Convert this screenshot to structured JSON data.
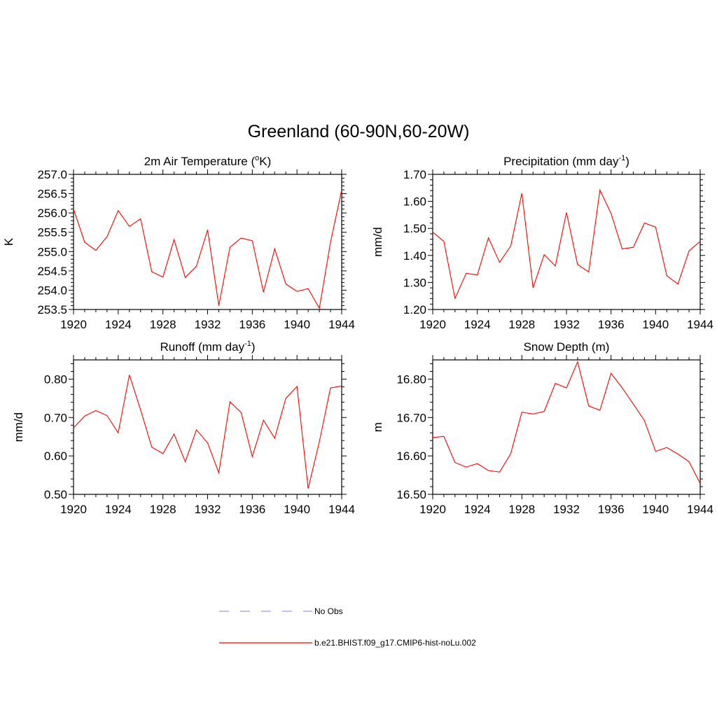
{
  "title": "Greenland (60-90N,60-20W)",
  "line_color": "#ff0000",
  "obs_color": "#9999ee",
  "legend": [
    {
      "label": "No Obs",
      "style": "dashed",
      "color": "#9999ee"
    },
    {
      "label": "b.e21.BHIST.f09_g17.CMIP6-hist-noLu.002",
      "style": "solid",
      "color": "#ff0000"
    }
  ],
  "chart_data": [
    {
      "type": "line",
      "title": "2m Air Temperature (",
      "title_sup_pre": "o",
      "title_post": "K)",
      "ylabel": "K",
      "xlim": [
        1920,
        1944
      ],
      "ylim": [
        253.5,
        257.0
      ],
      "xticks": [
        "1920",
        "1924",
        "1928",
        "1932",
        "1936",
        "1940",
        "1944"
      ],
      "yticks": [
        "253.5",
        "254.0",
        "254.5",
        "255.0",
        "255.5",
        "256.0",
        "256.5",
        "257.0"
      ],
      "series": [
        {
          "x": [
            1920,
            1921,
            1922,
            1923,
            1924,
            1925,
            1926,
            1927,
            1928,
            1929,
            1930,
            1931,
            1932,
            1933,
            1934,
            1935,
            1936,
            1937,
            1938,
            1939,
            1940,
            1941,
            1942,
            1943,
            1944
          ],
          "values": [
            256.1,
            255.24,
            255.03,
            255.39,
            256.06,
            255.65,
            255.85,
            254.48,
            254.34,
            255.31,
            254.33,
            254.62,
            255.56,
            253.6,
            255.11,
            255.35,
            255.28,
            253.95,
            255.07,
            254.16,
            253.97,
            254.04,
            253.53,
            255.24,
            256.6
          ]
        }
      ]
    },
    {
      "type": "line",
      "title": "Precipitation (mm day",
      "title_sup": "-1",
      "title_post": ")",
      "ylabel": "mm/d",
      "xlim": [
        1920,
        1944
      ],
      "ylim": [
        1.2,
        1.7
      ],
      "xticks": [
        "1920",
        "1924",
        "1928",
        "1932",
        "1936",
        "1940",
        "1944"
      ],
      "yticks": [
        "1.20",
        "1.30",
        "1.40",
        "1.50",
        "1.60",
        "1.70"
      ],
      "series": [
        {
          "x": [
            1920,
            1921,
            1922,
            1923,
            1924,
            1925,
            1926,
            1927,
            1928,
            1929,
            1930,
            1931,
            1932,
            1933,
            1934,
            1935,
            1936,
            1937,
            1938,
            1939,
            1940,
            1941,
            1942,
            1943,
            1944
          ],
          "values": [
            1.486,
            1.452,
            1.241,
            1.334,
            1.328,
            1.465,
            1.374,
            1.435,
            1.63,
            1.28,
            1.403,
            1.361,
            1.559,
            1.366,
            1.339,
            1.642,
            1.555,
            1.424,
            1.43,
            1.52,
            1.505,
            1.325,
            1.294,
            1.417,
            1.452
          ]
        }
      ]
    },
    {
      "type": "line",
      "title": "Runoff (mm day",
      "title_sup": "-1",
      "title_post": ")",
      "ylabel": "mm/d",
      "xlim": [
        1920,
        1944
      ],
      "ylim": [
        0.5,
        0.85
      ],
      "xticks": [
        "1920",
        "1924",
        "1928",
        "1932",
        "1936",
        "1940",
        "1944"
      ],
      "yticks": [
        "0.50",
        "0.60",
        "0.70",
        "0.80"
      ],
      "series": [
        {
          "x": [
            1920,
            1921,
            1922,
            1923,
            1924,
            1925,
            1926,
            1927,
            1928,
            1929,
            1930,
            1931,
            1932,
            1933,
            1934,
            1935,
            1936,
            1937,
            1938,
            1939,
            1940,
            1941,
            1942,
            1943,
            1944
          ],
          "values": [
            0.673,
            0.704,
            0.718,
            0.705,
            0.66,
            0.811,
            0.72,
            0.623,
            0.606,
            0.657,
            0.585,
            0.668,
            0.634,
            0.556,
            0.741,
            0.713,
            0.598,
            0.693,
            0.646,
            0.75,
            0.781,
            0.515,
            0.637,
            0.777,
            0.782
          ]
        }
      ]
    },
    {
      "type": "line",
      "title": "Snow Depth (m)",
      "ylabel": "m",
      "xlim": [
        1920,
        1944
      ],
      "ylim": [
        16.5,
        16.85
      ],
      "xticks": [
        "1920",
        "1924",
        "1928",
        "1932",
        "1936",
        "1940",
        "1944"
      ],
      "yticks": [
        "16.50",
        "16.60",
        "16.70",
        "16.80"
      ],
      "series": [
        {
          "x": [
            1920,
            1921,
            1922,
            1923,
            1924,
            1925,
            1926,
            1927,
            1928,
            1929,
            1930,
            1931,
            1932,
            1933,
            1934,
            1935,
            1936,
            1937,
            1938,
            1939,
            1940,
            1941,
            1942,
            1943,
            1944
          ],
          "values": [
            16.648,
            16.651,
            16.583,
            16.571,
            16.58,
            16.562,
            16.558,
            16.606,
            16.714,
            16.709,
            16.716,
            16.789,
            16.777,
            16.845,
            16.73,
            16.719,
            16.815,
            16.777,
            16.735,
            16.692,
            16.612,
            16.622,
            16.605,
            16.585,
            16.528
          ]
        }
      ]
    }
  ]
}
